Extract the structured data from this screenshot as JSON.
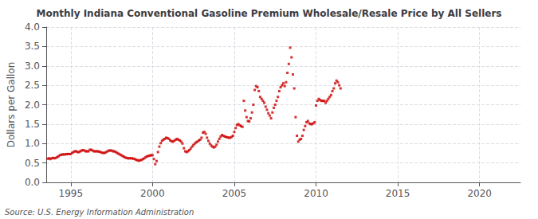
{
  "chart_data": {
    "type": "scatter",
    "title": "Monthly Indiana Conventional Gasoline Premium Wholesale/Resale Price by All Sellers",
    "ylabel": "Dollars per Gallon",
    "annotations": [
      "Source: U.S. Energy Information Administration"
    ],
    "color": "#cc0000",
    "marker": "square",
    "grid": true,
    "xlim": [
      1993.5,
      2022.5
    ],
    "ylim": [
      0.0,
      4.0
    ],
    "xticks": [
      1995,
      2000,
      2005,
      2010,
      2015,
      2020
    ],
    "yticks": [
      {
        "value": 0.0,
        "label": "0.0"
      },
      0.5,
      {
        "value": 1.0,
        "label": "1.0"
      },
      1.5,
      {
        "value": 2.0,
        "label": "2.0"
      },
      2.5,
      {
        "value": 3.0,
        "label": "3.0"
      },
      3.5,
      {
        "value": 4.0,
        "label": "4.0"
      }
    ],
    "x": [
      1993.583,
      1993.667,
      1993.75,
      1993.833,
      1993.917,
      1994.0,
      1994.083,
      1994.167,
      1994.25,
      1994.333,
      1994.417,
      1994.5,
      1994.583,
      1994.667,
      1994.75,
      1994.833,
      1994.917,
      1995.0,
      1995.083,
      1995.167,
      1995.25,
      1995.333,
      1995.417,
      1995.5,
      1995.583,
      1995.667,
      1995.75,
      1995.833,
      1995.917,
      1996.0,
      1996.083,
      1996.167,
      1996.25,
      1996.333,
      1996.417,
      1996.5,
      1996.583,
      1996.667,
      1996.75,
      1996.833,
      1996.917,
      1997.0,
      1997.083,
      1997.167,
      1997.25,
      1997.333,
      1997.417,
      1997.5,
      1997.583,
      1997.667,
      1997.75,
      1997.833,
      1997.917,
      1998.0,
      1998.083,
      1998.167,
      1998.25,
      1998.333,
      1998.417,
      1998.5,
      1998.583,
      1998.667,
      1998.75,
      1998.833,
      1998.917,
      1999.0,
      1999.083,
      1999.167,
      1999.25,
      1999.333,
      1999.417,
      1999.5,
      1999.583,
      1999.667,
      1999.75,
      1999.833,
      1999.917,
      2000.0,
      2000.083,
      2000.167,
      2000.25,
      2000.333,
      2000.417,
      2000.5,
      2000.583,
      2000.667,
      2000.75,
      2000.833,
      2000.917,
      2001.0,
      2001.083,
      2001.167,
      2001.25,
      2001.333,
      2001.417,
      2001.5,
      2001.583,
      2001.667,
      2001.75,
      2001.833,
      2001.917,
      2002.0,
      2002.083,
      2002.167,
      2002.25,
      2002.333,
      2002.417,
      2002.5,
      2002.583,
      2002.667,
      2002.75,
      2002.833,
      2002.917,
      2003.0,
      2003.083,
      2003.167,
      2003.25,
      2003.333,
      2003.417,
      2003.5,
      2003.583,
      2003.667,
      2003.75,
      2003.833,
      2003.917,
      2004.0,
      2004.083,
      2004.167,
      2004.25,
      2004.333,
      2004.417,
      2004.5,
      2004.583,
      2004.667,
      2004.75,
      2004.833,
      2004.917,
      2005.0,
      2005.083,
      2005.167,
      2005.25,
      2005.333,
      2005.417,
      2005.5,
      2005.583,
      2005.667,
      2005.75,
      2005.833,
      2005.917,
      2006.0,
      2006.083,
      2006.167,
      2006.25,
      2006.333,
      2006.417,
      2006.5,
      2006.583,
      2006.667,
      2006.75,
      2006.833,
      2006.917,
      2007.0,
      2007.083,
      2007.167,
      2007.25,
      2007.333,
      2007.417,
      2007.5,
      2007.583,
      2007.667,
      2007.75,
      2007.833,
      2007.917,
      2008.0,
      2008.083,
      2008.167,
      2008.25,
      2008.333,
      2008.417,
      2008.5,
      2008.583,
      2008.667,
      2008.75,
      2008.833,
      2008.917,
      2009.0,
      2009.083,
      2009.167,
      2009.25,
      2009.333,
      2009.417,
      2009.5,
      2009.583,
      2009.667,
      2009.75,
      2009.833,
      2009.917,
      2010.0,
      2010.083,
      2010.167,
      2010.25,
      2010.333,
      2010.417,
      2010.5,
      2010.583,
      2010.667,
      2010.75,
      2010.833,
      2010.917,
      2011.0,
      2011.083,
      2011.167,
      2011.25,
      2011.333,
      2011.417,
      2011.5
    ],
    "values": [
      0.61,
      0.62,
      0.6,
      0.62,
      0.63,
      0.62,
      0.63,
      0.65,
      0.67,
      0.7,
      0.71,
      0.72,
      0.72,
      0.72,
      0.73,
      0.73,
      0.73,
      0.73,
      0.76,
      0.78,
      0.8,
      0.8,
      0.78,
      0.78,
      0.8,
      0.82,
      0.83,
      0.82,
      0.8,
      0.8,
      0.8,
      0.84,
      0.84,
      0.82,
      0.8,
      0.8,
      0.8,
      0.8,
      0.79,
      0.78,
      0.76,
      0.76,
      0.76,
      0.78,
      0.8,
      0.82,
      0.82,
      0.82,
      0.8,
      0.8,
      0.78,
      0.76,
      0.74,
      0.72,
      0.7,
      0.68,
      0.66,
      0.64,
      0.63,
      0.62,
      0.62,
      0.62,
      0.62,
      0.61,
      0.6,
      0.58,
      0.57,
      0.56,
      0.57,
      0.58,
      0.6,
      0.62,
      0.65,
      0.67,
      0.68,
      0.69,
      0.7,
      0.7,
      0.6,
      0.47,
      0.55,
      0.78,
      0.92,
      1.01,
      1.07,
      1.1,
      1.12,
      1.15,
      1.14,
      1.12,
      1.08,
      1.06,
      1.05,
      1.07,
      1.1,
      1.12,
      1.1,
      1.08,
      1.05,
      1.0,
      0.88,
      0.8,
      0.78,
      0.8,
      0.83,
      0.87,
      0.92,
      0.96,
      1.0,
      1.03,
      1.05,
      1.08,
      1.1,
      1.15,
      1.28,
      1.3,
      1.25,
      1.15,
      1.07,
      1.0,
      0.95,
      0.92,
      0.9,
      0.92,
      0.97,
      1.05,
      1.12,
      1.18,
      1.22,
      1.2,
      1.18,
      1.17,
      1.16,
      1.15,
      1.15,
      1.17,
      1.2,
      1.3,
      1.4,
      1.48,
      1.5,
      1.47,
      1.45,
      1.43,
      2.1,
      1.85,
      1.68,
      1.58,
      1.57,
      1.65,
      1.8,
      2.0,
      2.38,
      2.48,
      2.45,
      2.35,
      2.2,
      2.15,
      2.1,
      2.05,
      1.95,
      1.87,
      1.78,
      1.72,
      1.65,
      1.8,
      1.92,
      2.0,
      2.1,
      2.2,
      2.35,
      2.45,
      2.5,
      2.55,
      2.48,
      2.58,
      2.82,
      3.05,
      3.47,
      3.22,
      2.78,
      2.42,
      1.68,
      1.2,
      1.05,
      1.1,
      1.12,
      1.2,
      1.35,
      1.45,
      1.55,
      1.58,
      1.52,
      1.5,
      1.5,
      1.52,
      1.55,
      1.98,
      2.1,
      2.15,
      2.12,
      2.1,
      2.1,
      2.1,
      2.05,
      2.1,
      2.15,
      2.2,
      2.25,
      2.35,
      2.42,
      2.55,
      2.62,
      2.58,
      2.5,
      2.42
    ]
  }
}
